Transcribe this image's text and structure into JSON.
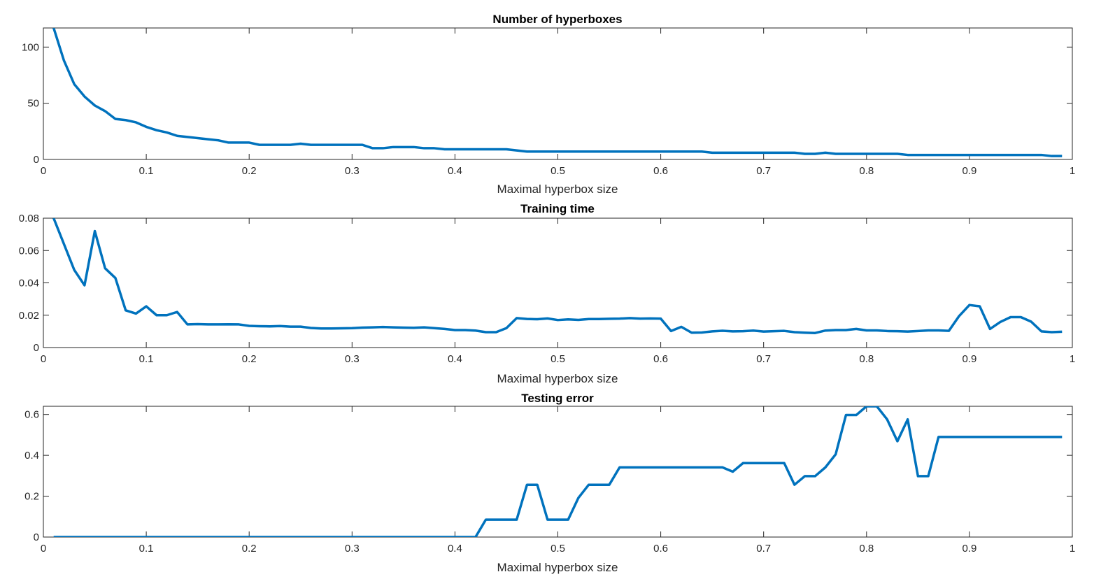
{
  "chart_data": [
    {
      "type": "line",
      "title": "Number of hyperboxes",
      "xlabel": "Maximal hyperbox size",
      "ylabel": "",
      "xlim": [
        0,
        1
      ],
      "ylim": [
        0,
        117
      ],
      "xticks": [
        "0",
        "0.1",
        "0.2",
        "0.3",
        "0.4",
        "0.5",
        "0.6",
        "0.7",
        "0.8",
        "0.9",
        "1"
      ],
      "yticks": [
        {
          "v": 0,
          "label": "0"
        },
        {
          "v": 50,
          "label": "50"
        },
        {
          "v": 100,
          "label": "100"
        }
      ],
      "color": "#0072BD",
      "x": [
        0.01,
        0.02,
        0.03,
        0.04,
        0.05,
        0.06,
        0.07,
        0.08,
        0.09,
        0.1,
        0.11,
        0.12,
        0.13,
        0.14,
        0.15,
        0.16,
        0.17,
        0.18,
        0.19,
        0.2,
        0.21,
        0.22,
        0.23,
        0.24,
        0.25,
        0.26,
        0.27,
        0.28,
        0.29,
        0.3,
        0.31,
        0.32,
        0.33,
        0.34,
        0.35,
        0.36,
        0.37,
        0.38,
        0.39,
        0.4,
        0.41,
        0.42,
        0.43,
        0.44,
        0.45,
        0.46,
        0.47,
        0.48,
        0.49,
        0.5,
        0.51,
        0.52,
        0.53,
        0.54,
        0.55,
        0.56,
        0.57,
        0.58,
        0.59,
        0.6,
        0.61,
        0.62,
        0.63,
        0.64,
        0.65,
        0.66,
        0.67,
        0.68,
        0.69,
        0.7,
        0.71,
        0.72,
        0.73,
        0.74,
        0.75,
        0.76,
        0.77,
        0.78,
        0.79,
        0.8,
        0.81,
        0.82,
        0.83,
        0.84,
        0.85,
        0.86,
        0.87,
        0.88,
        0.89,
        0.9,
        0.91,
        0.92,
        0.93,
        0.94,
        0.95,
        0.96,
        0.97,
        0.98,
        0.99
      ],
      "y": [
        117,
        88,
        67,
        56,
        48,
        43,
        36,
        35,
        33,
        29,
        26,
        24,
        21,
        20,
        19,
        18,
        17,
        15,
        15,
        15,
        13,
        13,
        13,
        13,
        14,
        13,
        13,
        13,
        13,
        13,
        13,
        10,
        10,
        11,
        11,
        11,
        10,
        10,
        9,
        9,
        9,
        9,
        9,
        9,
        9,
        8,
        7,
        7,
        7,
        7,
        7,
        7,
        7,
        7,
        7,
        7,
        7,
        7,
        7,
        7,
        7,
        7,
        7,
        7,
        6,
        6,
        6,
        6,
        6,
        6,
        6,
        6,
        6,
        5,
        5,
        6,
        5,
        5,
        5,
        5,
        5,
        5,
        5,
        4,
        4,
        4,
        4,
        4,
        4,
        4,
        4,
        4,
        4,
        4,
        4,
        4,
        4,
        3,
        3
      ]
    },
    {
      "type": "line",
      "title": "Training time",
      "xlabel": "Maximal hyperbox size",
      "ylabel": "",
      "xlim": [
        0,
        1
      ],
      "ylim": [
        0,
        0.08
      ],
      "xticks": [
        "0",
        "0.1",
        "0.2",
        "0.3",
        "0.4",
        "0.5",
        "0.6",
        "0.7",
        "0.8",
        "0.9",
        "1"
      ],
      "yticks": [
        {
          "v": 0,
          "label": "0"
        },
        {
          "v": 0.02,
          "label": "0.02"
        },
        {
          "v": 0.04,
          "label": "0.04"
        },
        {
          "v": 0.06,
          "label": "0.06"
        },
        {
          "v": 0.08,
          "label": "0.08"
        }
      ],
      "color": "#0072BD",
      "x": [
        0.01,
        0.02,
        0.03,
        0.04,
        0.05,
        0.06,
        0.07,
        0.08,
        0.09,
        0.1,
        0.11,
        0.12,
        0.13,
        0.14,
        0.15,
        0.16,
        0.17,
        0.18,
        0.19,
        0.2,
        0.21,
        0.22,
        0.23,
        0.24,
        0.25,
        0.26,
        0.27,
        0.28,
        0.29,
        0.3,
        0.31,
        0.32,
        0.33,
        0.34,
        0.35,
        0.36,
        0.37,
        0.38,
        0.39,
        0.4,
        0.41,
        0.42,
        0.43,
        0.44,
        0.45,
        0.46,
        0.47,
        0.48,
        0.49,
        0.5,
        0.51,
        0.52,
        0.53,
        0.54,
        0.55,
        0.56,
        0.57,
        0.58,
        0.59,
        0.6,
        0.61,
        0.62,
        0.63,
        0.64,
        0.65,
        0.66,
        0.67,
        0.68,
        0.69,
        0.7,
        0.71,
        0.72,
        0.73,
        0.74,
        0.75,
        0.76,
        0.77,
        0.78,
        0.79,
        0.8,
        0.81,
        0.82,
        0.83,
        0.84,
        0.85,
        0.86,
        0.87,
        0.88,
        0.89,
        0.9,
        0.91,
        0.92,
        0.93,
        0.94,
        0.95,
        0.96,
        0.97,
        0.98,
        0.99
      ],
      "y": [
        0.08,
        0.064,
        0.048,
        0.0385,
        0.072,
        0.049,
        0.043,
        0.023,
        0.021,
        0.0255,
        0.02,
        0.02,
        0.022,
        0.0143,
        0.0145,
        0.0143,
        0.0143,
        0.0144,
        0.0143,
        0.0134,
        0.0132,
        0.0131,
        0.0133,
        0.0129,
        0.0129,
        0.0121,
        0.0118,
        0.0118,
        0.0119,
        0.012,
        0.0123,
        0.0125,
        0.0127,
        0.0125,
        0.0123,
        0.0122,
        0.0125,
        0.012,
        0.0115,
        0.0108,
        0.0108,
        0.0105,
        0.0095,
        0.0095,
        0.012,
        0.0182,
        0.0177,
        0.0175,
        0.018,
        0.017,
        0.0174,
        0.0171,
        0.0176,
        0.0176,
        0.0178,
        0.0179,
        0.0182,
        0.0179,
        0.018,
        0.0179,
        0.0102,
        0.0128,
        0.0092,
        0.0093,
        0.01,
        0.0104,
        0.01,
        0.0101,
        0.0105,
        0.0099,
        0.0101,
        0.0103,
        0.0095,
        0.0092,
        0.009,
        0.0105,
        0.0108,
        0.0108,
        0.0115,
        0.0106,
        0.0106,
        0.0102,
        0.0101,
        0.0099,
        0.0102,
        0.0106,
        0.0106,
        0.0103,
        0.0195,
        0.0263,
        0.0255,
        0.0115,
        0.0158,
        0.0188,
        0.0188,
        0.016,
        0.01,
        0.0095,
        0.0098
      ]
    },
    {
      "type": "line",
      "title": "Testing error",
      "xlabel": "Maximal hyperbox size",
      "ylabel": "",
      "xlim": [
        0,
        1
      ],
      "ylim": [
        0,
        0.64
      ],
      "xticks": [
        "0",
        "0.1",
        "0.2",
        "0.3",
        "0.4",
        "0.5",
        "0.6",
        "0.7",
        "0.8",
        "0.9",
        "1"
      ],
      "yticks": [
        {
          "v": 0,
          "label": "0"
        },
        {
          "v": 0.2,
          "label": "0.2"
        },
        {
          "v": 0.4,
          "label": "0.4"
        },
        {
          "v": 0.6,
          "label": "0.6"
        }
      ],
      "color": "#0072BD",
      "x": [
        0.01,
        0.02,
        0.03,
        0.04,
        0.05,
        0.06,
        0.07,
        0.08,
        0.09,
        0.1,
        0.11,
        0.12,
        0.13,
        0.14,
        0.15,
        0.16,
        0.17,
        0.18,
        0.19,
        0.2,
        0.21,
        0.22,
        0.23,
        0.24,
        0.25,
        0.26,
        0.27,
        0.28,
        0.29,
        0.3,
        0.31,
        0.32,
        0.33,
        0.34,
        0.35,
        0.36,
        0.37,
        0.38,
        0.39,
        0.4,
        0.41,
        0.42,
        0.43,
        0.44,
        0.45,
        0.46,
        0.47,
        0.48,
        0.49,
        0.5,
        0.51,
        0.52,
        0.53,
        0.54,
        0.55,
        0.56,
        0.57,
        0.58,
        0.59,
        0.6,
        0.61,
        0.62,
        0.63,
        0.64,
        0.65,
        0.66,
        0.67,
        0.68,
        0.69,
        0.7,
        0.71,
        0.72,
        0.73,
        0.74,
        0.75,
        0.76,
        0.77,
        0.78,
        0.79,
        0.8,
        0.81,
        0.82,
        0.83,
        0.84,
        0.85,
        0.86,
        0.87,
        0.88,
        0.89,
        0.9,
        0.91,
        0.92,
        0.93,
        0.94,
        0.95,
        0.96,
        0.97,
        0.98,
        0.99
      ],
      "y": [
        0,
        0,
        0,
        0,
        0,
        0,
        0,
        0,
        0,
        0,
        0,
        0,
        0,
        0,
        0,
        0,
        0,
        0,
        0,
        0,
        0,
        0,
        0,
        0,
        0,
        0,
        0,
        0,
        0,
        0,
        0,
        0,
        0,
        0,
        0,
        0,
        0,
        0,
        0,
        0,
        0,
        0,
        0.085,
        0.085,
        0.085,
        0.085,
        0.256,
        0.256,
        0.085,
        0.085,
        0.085,
        0.192,
        0.256,
        0.256,
        0.256,
        0.341,
        0.341,
        0.341,
        0.341,
        0.341,
        0.341,
        0.341,
        0.341,
        0.341,
        0.341,
        0.341,
        0.32,
        0.362,
        0.362,
        0.362,
        0.362,
        0.362,
        0.256,
        0.298,
        0.298,
        0.341,
        0.405,
        0.597,
        0.597,
        0.64,
        0.64,
        0.576,
        0.469,
        0.576,
        0.298,
        0.298,
        0.49,
        0.49,
        0.49,
        0.49,
        0.49,
        0.49,
        0.49,
        0.49,
        0.49,
        0.49,
        0.49,
        0.49,
        0.49
      ]
    }
  ]
}
